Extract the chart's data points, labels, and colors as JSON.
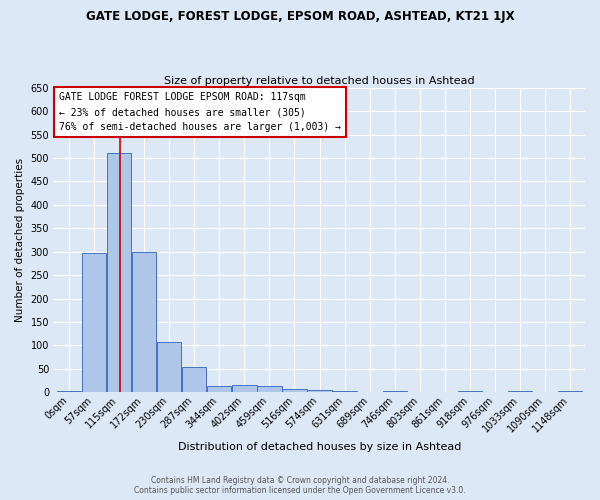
{
  "title": "GATE LODGE, FOREST LODGE, EPSOM ROAD, ASHTEAD, KT21 1JX",
  "subtitle": "Size of property relative to detached houses in Ashtead",
  "xlabel": "Distribution of detached houses by size in Ashtead",
  "ylabel": "Number of detached properties",
  "bar_labels": [
    "0sqm",
    "57sqm",
    "115sqm",
    "172sqm",
    "230sqm",
    "287sqm",
    "344sqm",
    "402sqm",
    "459sqm",
    "516sqm",
    "574sqm",
    "631sqm",
    "689sqm",
    "746sqm",
    "803sqm",
    "861sqm",
    "918sqm",
    "976sqm",
    "1033sqm",
    "1090sqm",
    "1148sqm"
  ],
  "bar_values": [
    3,
    298,
    510,
    300,
    108,
    53,
    13,
    15,
    13,
    8,
    5,
    3,
    0,
    3,
    0,
    0,
    3,
    0,
    3,
    0,
    3
  ],
  "bar_color": "#aec6e8",
  "bar_edge_color": "#4472c4",
  "background_color": "#dce8f5",
  "grid_color": "#ffffff",
  "property_line_x": 2.03,
  "annotation_text": "GATE LODGE FOREST LODGE EPSOM ROAD: 117sqm\n← 23% of detached houses are smaller (305)\n76% of semi-detached houses are larger (1,003) →",
  "annotation_box_color": "#ffffff",
  "annotation_box_edge_color": "#cc0000",
  "vline_color": "#cc0000",
  "footer_line1": "Contains HM Land Registry data © Crown copyright and database right 2024.",
  "footer_line2": "Contains public sector information licensed under the Open Government Licence v3.0.",
  "ylim": [
    0,
    650
  ],
  "yticks": [
    0,
    50,
    100,
    150,
    200,
    250,
    300,
    350,
    400,
    450,
    500,
    550,
    600,
    650
  ]
}
